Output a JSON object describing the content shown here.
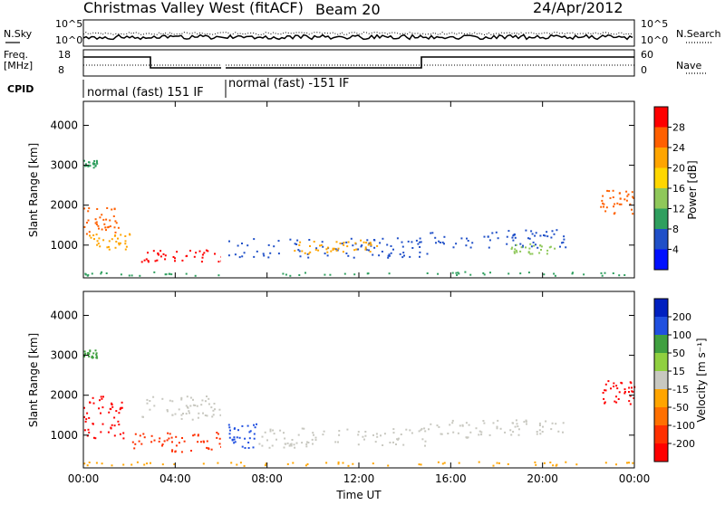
{
  "header": {
    "title": "Christmas Valley West (fitACF)",
    "beam": "Beam 20",
    "date": "24/Apr/2012"
  },
  "noise_panel": {
    "left_label": "N.Sky",
    "right_label": "N.Search",
    "left_ticks": [
      "10^5",
      "10^0"
    ],
    "right_ticks": [
      "10^5",
      "10^0"
    ]
  },
  "freq_panel": {
    "left_label_1": "Freq.",
    "left_label_2": "[MHz]",
    "right_label": "Nave",
    "left_ticks": [
      "18",
      "8"
    ],
    "right_ticks": [
      "60",
      "0"
    ]
  },
  "cpid": {
    "label": "CPID",
    "segments": [
      {
        "text": "normal (fast) 151 IF",
        "start_hour": 0.0
      },
      {
        "text": "normal (fast) -151 IF",
        "start_hour": 6.25
      }
    ]
  },
  "chart_data": [
    {
      "type": "heatmap",
      "name": "power",
      "ylabel": "Slant Range [km]",
      "xlabel": "Time UT",
      "x_ticks": [
        "00:00",
        "04:00",
        "08:00",
        "12:00",
        "16:00",
        "20:00",
        "00:00"
      ],
      "x_range_hours": [
        0,
        24
      ],
      "y_ticks": [
        1000,
        2000,
        3000,
        4000
      ],
      "ylim": [
        180,
        4600
      ],
      "colorbar": {
        "label": "Power [dB]",
        "ticks": [
          "28",
          "24",
          "20",
          "16",
          "12",
          "8",
          "4"
        ],
        "colors": [
          "#ff0000",
          "#ff6000",
          "#ffa500",
          "#ffd700",
          "#8fc85a",
          "#2f9f5f",
          "#2050c8",
          "#0010ff"
        ]
      },
      "scatter_regions": [
        {
          "t0": 0.0,
          "t1": 0.6,
          "r0": 2950,
          "r1": 3150,
          "color": "#2f9f5f"
        },
        {
          "t0": 0.0,
          "t1": 1.5,
          "r0": 1300,
          "r1": 2000,
          "color": "#ff6000"
        },
        {
          "t0": 0.2,
          "t1": 2.0,
          "r0": 900,
          "r1": 1300,
          "color": "#ffa500"
        },
        {
          "t0": 2.5,
          "t1": 6.0,
          "r0": 600,
          "r1": 900,
          "color": "#ff0000"
        },
        {
          "t0": 6.3,
          "t1": 15.0,
          "r0": 700,
          "r1": 1200,
          "color": "#2050c8"
        },
        {
          "t0": 9.0,
          "t1": 13.0,
          "r0": 800,
          "r1": 1150,
          "color": "#ffa500"
        },
        {
          "t0": 15.0,
          "t1": 21.0,
          "r0": 950,
          "r1": 1400,
          "color": "#2050c8"
        },
        {
          "t0": 18.5,
          "t1": 20.5,
          "r0": 800,
          "r1": 1050,
          "color": "#8fc85a"
        },
        {
          "t0": 22.5,
          "t1": 24.0,
          "r0": 1800,
          "r1": 2400,
          "color": "#ff6000"
        },
        {
          "t0": 0.0,
          "t1": 24.0,
          "r0": 250,
          "r1": 350,
          "color": "#2f9f5f"
        }
      ]
    },
    {
      "type": "heatmap",
      "name": "velocity",
      "ylabel": "Slant Range [km]",
      "xlabel": "Time UT",
      "x_ticks": [
        "00:00",
        "04:00",
        "08:00",
        "12:00",
        "16:00",
        "20:00",
        "00:00"
      ],
      "x_range_hours": [
        0,
        24
      ],
      "y_ticks": [
        1000,
        2000,
        3000,
        4000
      ],
      "ylim": [
        180,
        4600
      ],
      "colorbar": {
        "label": "Velocity [m s⁻¹]",
        "ticks": [
          "200",
          "100",
          "50",
          "15",
          "-15",
          "-50",
          "-100",
          "-200"
        ],
        "colors": [
          "#0020c0",
          "#2050e0",
          "#40a040",
          "#90d040",
          "#c8c8c0",
          "#ffa500",
          "#ff7000",
          "#ff3000",
          "#ff0000"
        ]
      },
      "scatter_regions": [
        {
          "t0": 0.0,
          "t1": 0.6,
          "r0": 2950,
          "r1": 3150,
          "color": "#40a040"
        },
        {
          "t0": 0.0,
          "t1": 1.8,
          "r0": 900,
          "r1": 2000,
          "color": "#ff0000"
        },
        {
          "t0": 2.0,
          "t1": 6.0,
          "r0": 600,
          "r1": 1100,
          "color": "#ff3000"
        },
        {
          "t0": 2.5,
          "t1": 6.0,
          "r0": 1400,
          "r1": 2000,
          "color": "#c8c8c0"
        },
        {
          "t0": 6.3,
          "t1": 7.5,
          "r0": 700,
          "r1": 1300,
          "color": "#2050e0"
        },
        {
          "t0": 7.5,
          "t1": 15.0,
          "r0": 700,
          "r1": 1200,
          "color": "#c8c8c0"
        },
        {
          "t0": 15.0,
          "t1": 21.0,
          "r0": 950,
          "r1": 1400,
          "color": "#c8c8c0"
        },
        {
          "t0": 22.5,
          "t1": 24.0,
          "r0": 1800,
          "r1": 2400,
          "color": "#ff0000"
        },
        {
          "t0": 0.0,
          "t1": 24.0,
          "r0": 250,
          "r1": 350,
          "color": "#ffa500"
        }
      ]
    }
  ]
}
